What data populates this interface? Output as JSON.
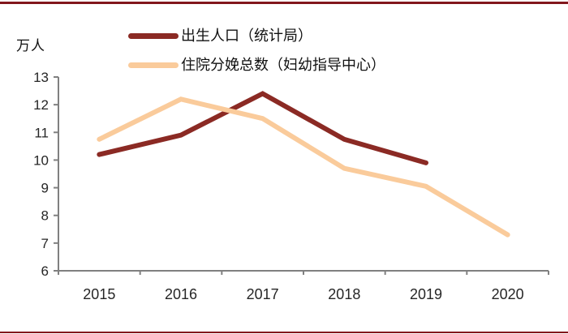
{
  "page": {
    "top_border_color": "#82171c",
    "bottom_border_color": "#82171c",
    "background": "#ffffff"
  },
  "chart_data": {
    "type": "line",
    "title": "",
    "unit_label": "万人",
    "categories": [
      "2015",
      "2016",
      "2017",
      "2018",
      "2019",
      "2020"
    ],
    "series": [
      {
        "name": "出生人口（统计局）",
        "color": "#8b2a24",
        "values": [
          10.2,
          10.9,
          12.4,
          10.75,
          9.9,
          null
        ]
      },
      {
        "name": "住院分娩总数（妇幼指导中心）",
        "color": "#facb9b",
        "values": [
          10.75,
          12.2,
          11.5,
          9.7,
          9.05,
          7.3
        ]
      }
    ],
    "ylim": [
      6,
      13
    ],
    "y_ticks": [
      6,
      7,
      8,
      9,
      10,
      11,
      12,
      13
    ],
    "xlabel": "",
    "ylabel": "",
    "grid": false,
    "legend_position": "top-left",
    "axis_color": "#808080",
    "tick_label_color": "#262626"
  }
}
